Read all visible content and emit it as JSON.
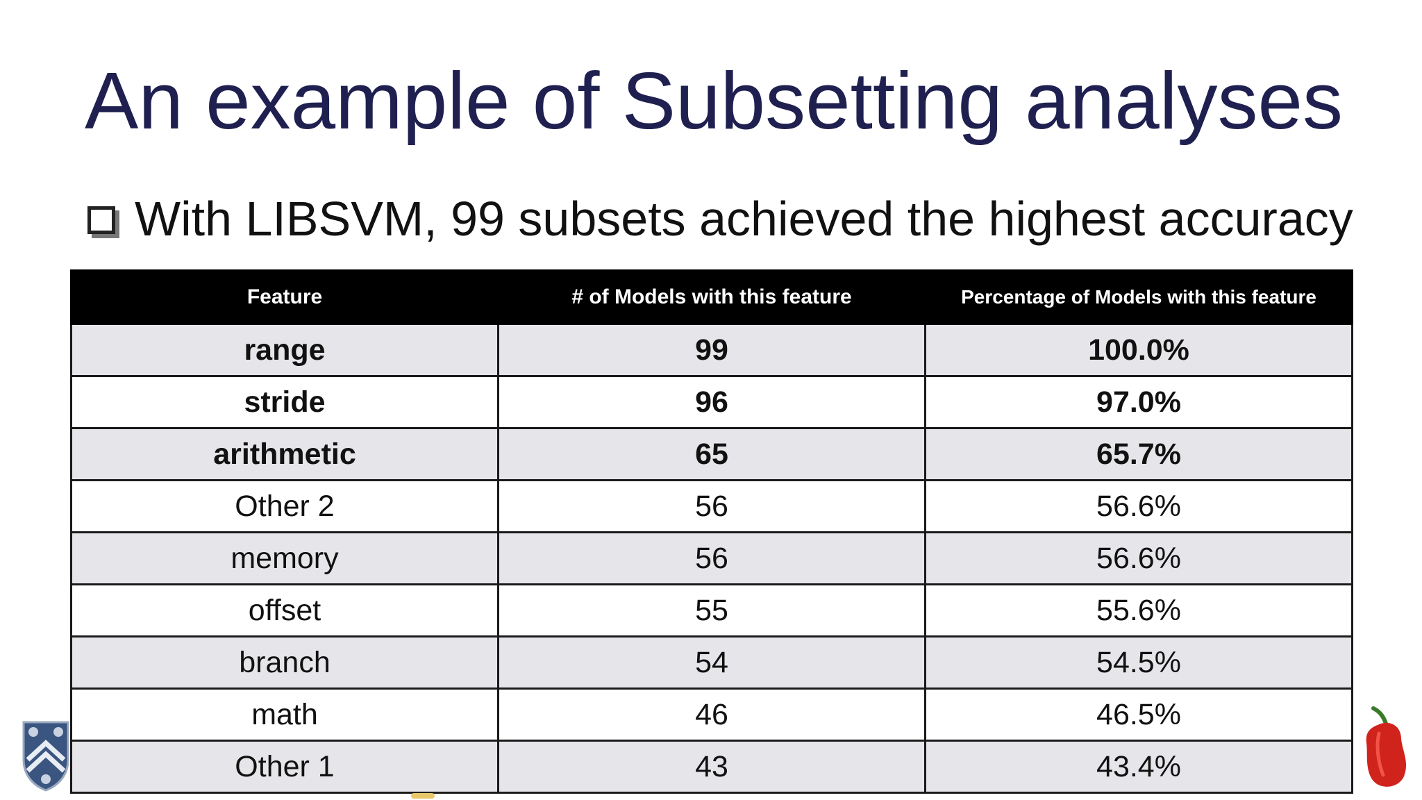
{
  "slide": {
    "title": "An example of Subsetting analyses",
    "bullet": "With LIBSVM, 99 subsets achieved the highest accuracy"
  },
  "table": {
    "headers": [
      "Feature",
      "# of Models with this feature",
      "Percentage of Models with this feature"
    ],
    "rows": [
      {
        "feature": "range",
        "count": "99",
        "percent": "100.0%",
        "bold": true
      },
      {
        "feature": "stride",
        "count": "96",
        "percent": "97.0%",
        "bold": true
      },
      {
        "feature": "arithmetic",
        "count": "65",
        "percent": "65.7%",
        "bold": true
      },
      {
        "feature": "Other 2",
        "count": "56",
        "percent": "56.6%",
        "bold": false
      },
      {
        "feature": "memory",
        "count": "56",
        "percent": "56.6%",
        "bold": false
      },
      {
        "feature": "offset",
        "count": "55",
        "percent": "55.6%",
        "bold": false
      },
      {
        "feature": "branch",
        "count": "54",
        "percent": "54.5%",
        "bold": false
      },
      {
        "feature": "math",
        "count": "46",
        "percent": "46.5%",
        "bold": false
      },
      {
        "feature": "Other 1",
        "count": "43",
        "percent": "43.4%",
        "bold": false
      }
    ]
  },
  "colors": {
    "title": "#1f2050",
    "header_bg": "#000000",
    "row_shade": "#e6e6ea"
  },
  "logos": {
    "left": "university-crest-icon",
    "right": "chili-pepper-icon"
  }
}
